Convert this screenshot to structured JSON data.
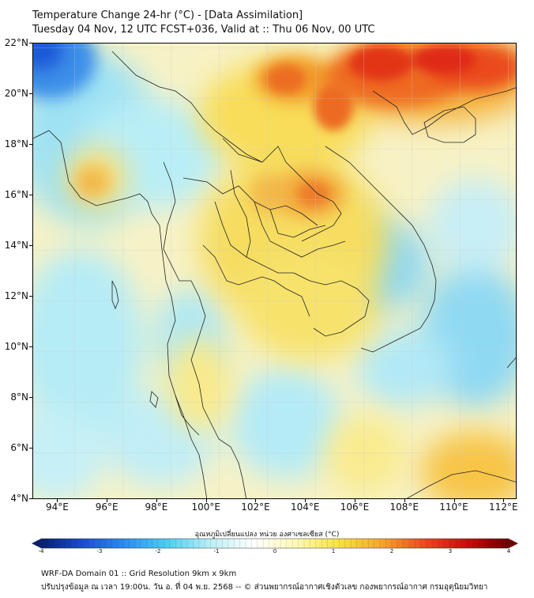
{
  "header": {
    "title_line1": "Temperature Change 24-hr (°C) - [Data Assimilation]",
    "title_line2": "Tuesday 04 Nov, 12 UTC FCST+036, Valid at :: Thu 06 Nov, 00 UTC"
  },
  "map": {
    "lat_labels": [
      "22°N",
      "20°N",
      "18°N",
      "16°N",
      "14°N",
      "12°N",
      "10°N",
      "8°N",
      "6°N",
      "4°N"
    ],
    "lon_labels": [
      "94°E",
      "96°E",
      "98°E",
      "100°E",
      "102°E",
      "104°E",
      "106°E",
      "108°E",
      "110°E",
      "112°E"
    ],
    "lat_range": [
      4,
      22
    ],
    "lon_range": [
      93,
      112.5
    ]
  },
  "colorbar": {
    "title": "อุณหภูมิเปลี่ยนแปลง หน่วย องศาเซลเซียส (°C)",
    "tick_labels": [
      "-4",
      "-3",
      "-2",
      "-1",
      "0",
      "1",
      "2",
      "3",
      "4"
    ],
    "range": [
      -4,
      4
    ],
    "colors": [
      "#08206e",
      "#1a4fd6",
      "#2f8ff0",
      "#4fd0f2",
      "#bdeff8",
      "#ffffff",
      "#fff9b5",
      "#f7e33f",
      "#f6a72b",
      "#ee4a1e",
      "#d10b0b",
      "#6e0000"
    ]
  },
  "footer": {
    "line1": "WRF-DA Domain 01 :: Grid Resolution 9km x 9km",
    "line2": "ปรับปรุงข้อมูล ณ เวลา 19:00น. วัน อ. ที่ 04 พ.ย. 2568 -- © ส่วนพยากรณ์อากาศเชิงตัวเลข กองพยากรณ์อากาศ กรมอุตุนิยมวิทยา"
  }
}
